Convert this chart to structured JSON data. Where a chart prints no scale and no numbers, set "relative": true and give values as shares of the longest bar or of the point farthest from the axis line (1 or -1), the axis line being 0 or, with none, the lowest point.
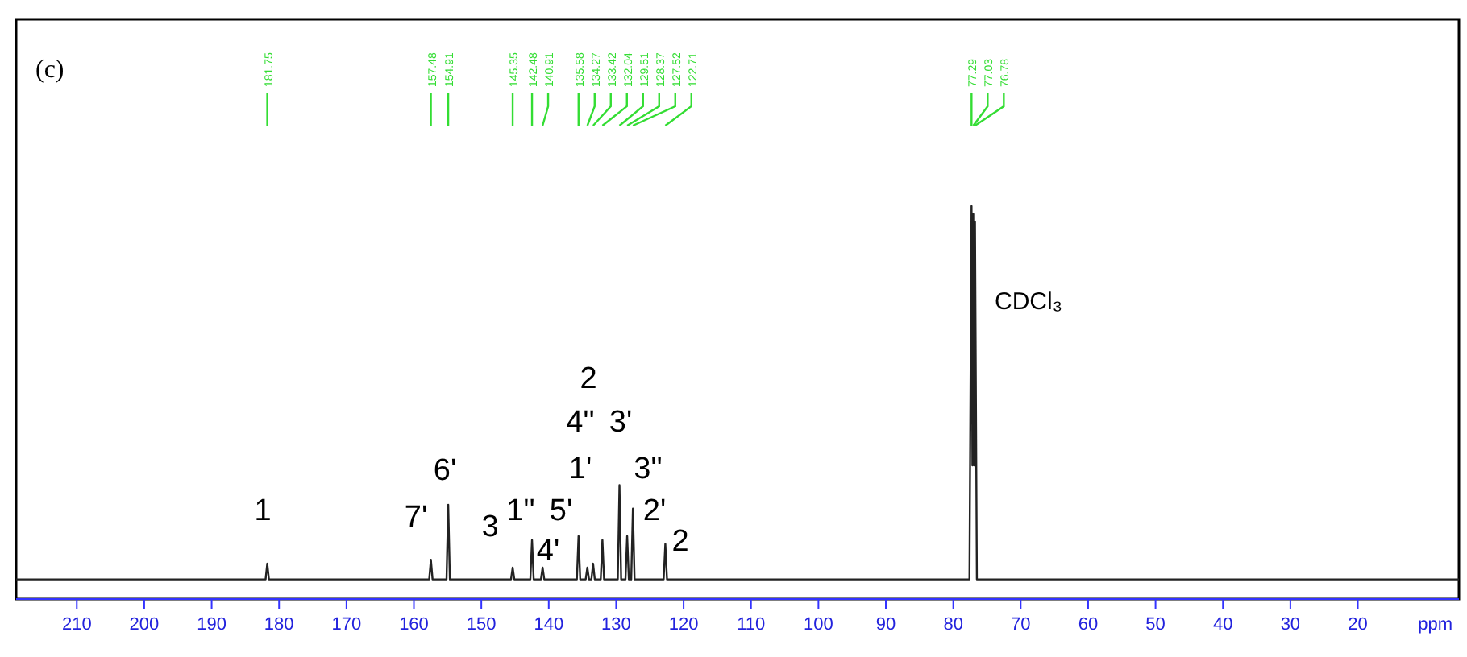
{
  "chart_data": {
    "type": "line",
    "title": "(c)",
    "xlabel": "ppm",
    "relative": true,
    "line_style": "solid",
    "xlim": [
      219,
      5
    ],
    "xticks": [
      210,
      200,
      190,
      180,
      170,
      160,
      150,
      140,
      130,
      120,
      110,
      100,
      90,
      80,
      70,
      60,
      50,
      40,
      30,
      20
    ],
    "series": [
      {
        "color": "#222222",
        "x": [
          219,
          182,
          181.75,
          181.5,
          157.73,
          157.48,
          157.23,
          155.16,
          154.91,
          154.66,
          145.6,
          145.35,
          145.1,
          142.73,
          142.48,
          142.23,
          141.16,
          140.91,
          140.66,
          135.83,
          135.58,
          135.33,
          134.52,
          134.27,
          134.02,
          133.67,
          133.42,
          133.17,
          132.29,
          132.04,
          131.79,
          129.76,
          129.51,
          129.26,
          128.62,
          128.37,
          128.12,
          127.77,
          127.52,
          127.27,
          122.96,
          122.71,
          122.46,
          77.6,
          77.29,
          77.16,
          77.03,
          76.9,
          76.78,
          76.5,
          5
        ],
        "values": [
          0.05,
          0.05,
          0.09,
          0.05,
          0.05,
          0.1,
          0.05,
          0.05,
          0.24,
          0.05,
          0.05,
          0.08,
          0.05,
          0.05,
          0.15,
          0.05,
          0.05,
          0.08,
          0.05,
          0.05,
          0.16,
          0.05,
          0.05,
          0.08,
          0.05,
          0.05,
          0.09,
          0.05,
          0.05,
          0.15,
          0.05,
          0.05,
          0.29,
          0.05,
          0.05,
          0.16,
          0.05,
          0.05,
          0.23,
          0.05,
          0.05,
          0.14,
          0.05,
          0.05,
          1,
          0.34,
          0.98,
          0.34,
          0.96,
          0.05,
          0.05
        ]
      }
    ],
    "annotations": [
      "1",
      "7'",
      "6'",
      "3",
      "1''",
      "4'",
      "5'",
      "1'",
      "4''",
      "3'",
      "3''",
      "2'",
      "2",
      "2",
      "CDCl₃",
      {
        "text": "181.75",
        "x": 181.75
      },
      {
        "text": "157.48",
        "x": 157.48
      },
      {
        "text": "154.91",
        "x": 154.91
      },
      {
        "text": "145.35",
        "x": 145.35
      },
      {
        "text": "142.48",
        "x": 142.48
      },
      {
        "text": "140.91",
        "x": 140.91
      },
      {
        "text": "135.58",
        "x": 135.58
      },
      {
        "text": "134.27",
        "x": 134.27
      },
      {
        "text": "133.42",
        "x": 133.42
      },
      {
        "text": "132.04",
        "x": 132.04
      },
      {
        "text": "129.51",
        "x": 129.51
      },
      {
        "text": "128.37",
        "x": 128.37
      },
      {
        "text": "127.52",
        "x": 127.52
      },
      {
        "text": "122.71",
        "x": 122.71
      },
      {
        "text": "77.29",
        "x": 77.29
      },
      {
        "text": "77.03",
        "x": 77.03
      },
      {
        "text": "76.78",
        "x": 76.78
      }
    ]
  }
}
